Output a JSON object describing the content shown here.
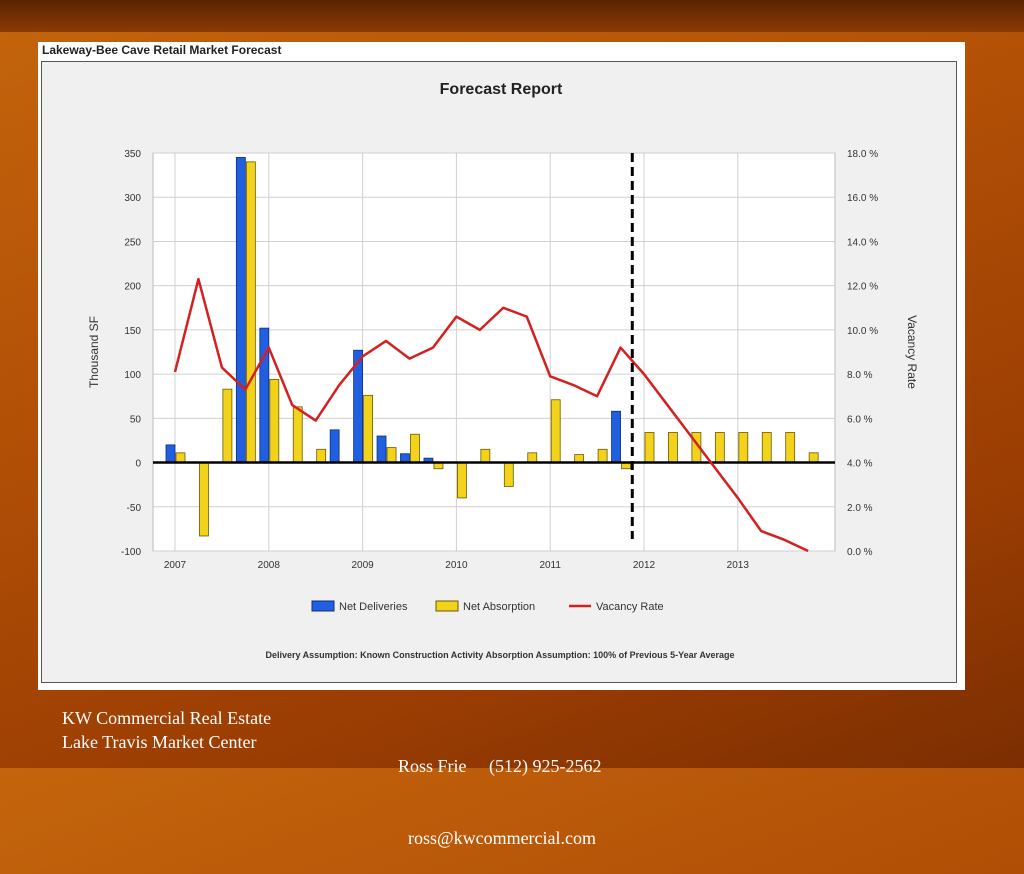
{
  "panel_title": "Lakeway-Bee Cave Retail Market Forecast",
  "footer": {
    "company": "KW Commercial Real Estate",
    "center": "Lake Travis Market Center",
    "contact_line": "Ross Frie     (512) 925-2562",
    "email": "ross@kwcommercial.com"
  },
  "colors": {
    "deliveries": "#1f5fe0",
    "absorption": "#f2d21a",
    "vacancy": "#d42020"
  },
  "chart_data": {
    "type": "bar",
    "title": "Forecast Report",
    "ylabel": "Thousand SF",
    "y2label": "Vacancy Rate",
    "ylim": [
      -100,
      350
    ],
    "y2lim": [
      0,
      18
    ],
    "yticks": [
      "350",
      "300",
      "250",
      "200",
      "150",
      "100",
      "50",
      "0",
      "-50",
      "-100"
    ],
    "y2ticks": [
      "18.0 %",
      "16.0 %",
      "14.0 %",
      "12.0 %",
      "10.0 %",
      "8.0 %",
      "6.0 %",
      "4.0 %",
      "2.0 %",
      "0.0 %"
    ],
    "years": [
      "2007",
      "2008",
      "2009",
      "2010",
      "2011",
      "2012",
      "2013"
    ],
    "quarters": [
      "2007Q1",
      "2007Q2",
      "2007Q3",
      "2007Q4",
      "2008Q1",
      "2008Q2",
      "2008Q3",
      "2008Q4",
      "2009Q1",
      "2009Q2",
      "2009Q3",
      "2009Q4",
      "2010Q1",
      "2010Q2",
      "2010Q3",
      "2010Q4",
      "2011Q1",
      "2011Q2",
      "2011Q3",
      "2011Q4",
      "2012Q1",
      "2012Q2",
      "2012Q3",
      "2012Q4",
      "2013Q1",
      "2013Q2",
      "2013Q3",
      "2013Q4"
    ],
    "forecast_start": "2012Q1",
    "series": [
      {
        "name": "Net Deliveries",
        "values": [
          20,
          0,
          0,
          345,
          152,
          0,
          0,
          37,
          127,
          30,
          10,
          5,
          0,
          0,
          0,
          0,
          0,
          0,
          0,
          58,
          0,
          0,
          0,
          0,
          0,
          0,
          0,
          0
        ]
      },
      {
        "name": "Net Absorption",
        "values": [
          11,
          -83,
          83,
          340,
          94,
          63,
          15,
          0,
          76,
          17,
          32,
          -7,
          -40,
          15,
          -27,
          11,
          71,
          9,
          15,
          -7,
          34,
          34,
          34,
          34,
          34,
          34,
          34,
          11
        ]
      },
      {
        "name": "Vacancy Rate",
        "values": [
          8.1,
          12.3,
          8.3,
          7.3,
          9.2,
          6.6,
          5.9,
          7.5,
          8.8,
          9.5,
          8.7,
          9.2,
          10.6,
          10.0,
          11.0,
          10.6,
          7.9,
          7.5,
          7.0,
          9.2,
          8.0,
          6.6,
          5.2,
          3.8,
          2.4,
          0.9,
          0.5,
          0.0
        ]
      }
    ],
    "note": "Delivery Assumption: Known Construction Activity   Absorption Assumption: 100% of Previous 5-Year Average",
    "legend_position": "bottom",
    "grid": true
  }
}
